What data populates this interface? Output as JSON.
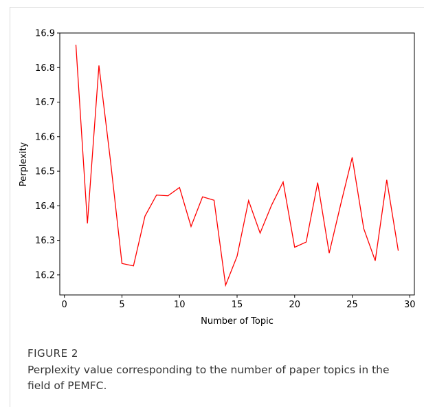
{
  "caption": {
    "label": "FIGURE 2",
    "text": "Perplexity value corresponding to the number of paper topics in the field of PEMFC."
  },
  "chart_data": {
    "type": "line",
    "xlabel": "Number of Topic",
    "ylabel": "Perplexity",
    "xlim": [
      -0.4,
      30.4
    ],
    "ylim": [
      16.142,
      16.9
    ],
    "xticks": [
      0,
      5,
      10,
      15,
      20,
      25,
      30
    ],
    "yticks": [
      16.2,
      16.3,
      16.4,
      16.5,
      16.6,
      16.7,
      16.8,
      16.9
    ],
    "ytick_labels": [
      "16.2",
      "16.3",
      "16.4",
      "16.5",
      "16.6",
      "16.7",
      "16.8",
      "16.9"
    ],
    "grid": false,
    "series": [
      {
        "color": "#ff0000",
        "x": [
          1,
          2,
          3,
          4,
          5,
          6,
          7,
          8,
          9,
          10,
          11,
          12,
          13,
          14,
          15,
          16,
          17,
          18,
          19,
          20,
          21,
          22,
          23,
          24,
          25,
          26,
          27,
          28,
          29
        ],
        "y": [
          16.866,
          16.349,
          16.806,
          16.531,
          16.233,
          16.226,
          16.37,
          16.431,
          16.429,
          16.453,
          16.34,
          16.426,
          16.416,
          16.17,
          16.254,
          16.415,
          16.321,
          16.402,
          16.469,
          16.28,
          16.295,
          16.467,
          16.263,
          16.404,
          16.54,
          16.334,
          16.241,
          16.475,
          16.27
        ]
      }
    ]
  }
}
